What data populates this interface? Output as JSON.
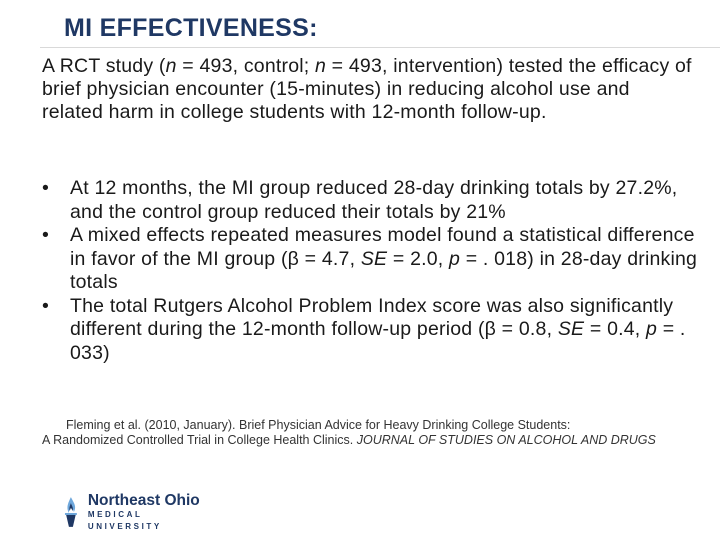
{
  "slide": {
    "title": "MI EFFECTIVENESS:",
    "intro": {
      "p1": "A RCT study (",
      "n1": "n",
      "p2": " = 493, control; ",
      "n2": "n",
      "p3": " = 493, intervention) tested the efficacy of brief physician encounter (15-minutes) in reducing alcohol use and related harm in college students with 12-month follow-up."
    },
    "bullet_symbol": "•",
    "bullets": [
      {
        "text": "At 12 months, the MI group reduced 28-day drinking totals by 27.2%, and the control group reduced their totals by 21%"
      },
      {
        "a": " A mixed effects repeated measures model found a statistical difference in favor of the MI group (β = 4.7, ",
        "se": "SE",
        "b": " = 2.0, ",
        "p": "p",
        "c": " = . 018) in 28-day drinking totals"
      },
      {
        "a": "The total Rutgers Alcohol Problem Index score was also significantly different during the 12-month follow-up period (β = 0.8, ",
        "se": "SE",
        "b": " = 0.4, ",
        "p": "p",
        "c": " = . 033)"
      }
    ],
    "citation": {
      "line1": "Fleming et al. (2010, January). Brief Physician Advice for Heavy Drinking College Students:",
      "line2": "A Randomized Controlled Trial in College Health Clinics. ",
      "journal": "JOURNAL OF STUDIES ON ALCOHOL AND DRUGS"
    },
    "logo": {
      "name": "Northeast Ohio",
      "sub": "MEDICAL UNIVERSITY"
    }
  }
}
